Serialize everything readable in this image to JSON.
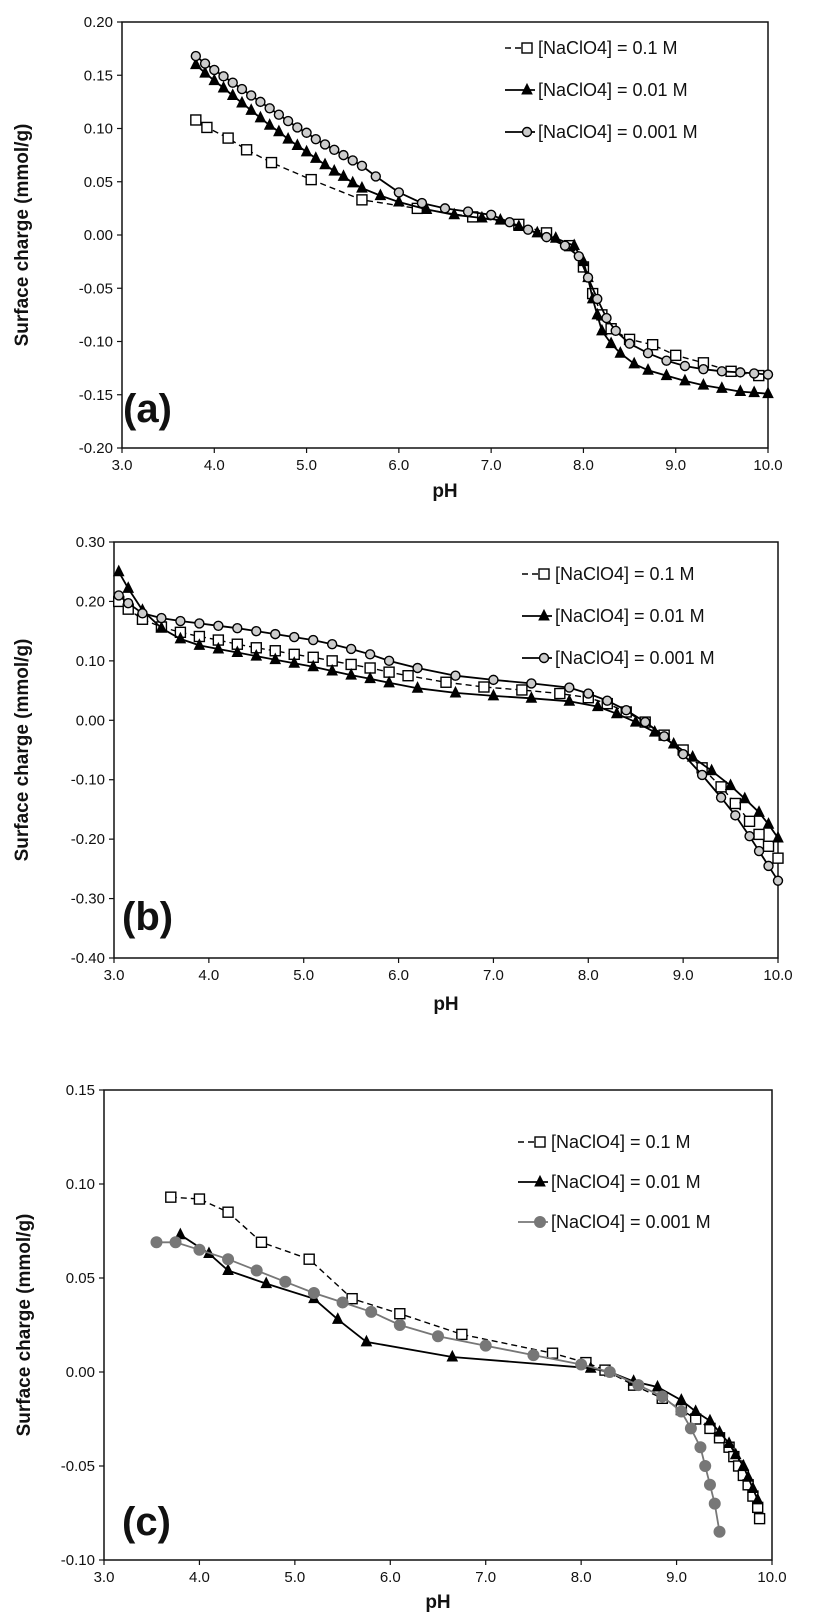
{
  "chart_data": [
    {
      "type": "scatter",
      "panel_label": "(a)",
      "xlabel": "pH",
      "ylabel": "Surface charge (mmol/g)",
      "xlim": [
        3.0,
        10.0
      ],
      "ylim": [
        -0.2,
        0.2
      ],
      "xticks": [
        "3.0",
        "4.0",
        "5.0",
        "6.0",
        "7.0",
        "8.0",
        "9.0",
        "10.0"
      ],
      "yticks": [
        "-0.20",
        "-0.15",
        "-0.10",
        "-0.05",
        "0.00",
        "0.05",
        "0.10",
        "0.15",
        "0.20"
      ],
      "legend_position": "top-right",
      "series": [
        {
          "name": "[NaClO4] = 0.1 M",
          "marker": "square-open",
          "line": "dashed",
          "color": "#000000",
          "x": [
            3.8,
            3.92,
            4.15,
            4.35,
            4.62,
            5.05,
            5.6,
            6.2,
            6.8,
            7.3,
            7.6,
            7.85,
            8.0,
            8.1,
            8.2,
            8.3,
            8.5,
            8.75,
            9.0,
            9.3,
            9.6,
            9.9
          ],
          "y": [
            0.108,
            0.101,
            0.091,
            0.08,
            0.068,
            0.052,
            0.033,
            0.025,
            0.017,
            0.01,
            0.002,
            -0.01,
            -0.03,
            -0.055,
            -0.075,
            -0.088,
            -0.098,
            -0.103,
            -0.113,
            -0.12,
            -0.128,
            -0.132
          ]
        },
        {
          "name": "[NaClO4] = 0.01 M",
          "marker": "triangle-filled",
          "line": "solid",
          "color": "#000000",
          "x": [
            3.8,
            3.9,
            4.0,
            4.1,
            4.2,
            4.3,
            4.4,
            4.5,
            4.6,
            4.7,
            4.8,
            4.9,
            5.0,
            5.1,
            5.2,
            5.3,
            5.4,
            5.5,
            5.6,
            5.8,
            6.0,
            6.3,
            6.6,
            6.9,
            7.1,
            7.3,
            7.5,
            7.7,
            7.9,
            8.0,
            8.05,
            8.1,
            8.15,
            8.2,
            8.3,
            8.4,
            8.55,
            8.7,
            8.9,
            9.1,
            9.3,
            9.5,
            9.7,
            9.85,
            10.0
          ],
          "y": [
            0.16,
            0.152,
            0.145,
            0.138,
            0.131,
            0.124,
            0.117,
            0.11,
            0.103,
            0.097,
            0.09,
            0.084,
            0.078,
            0.072,
            0.066,
            0.06,
            0.055,
            0.049,
            0.044,
            0.037,
            0.031,
            0.024,
            0.019,
            0.016,
            0.014,
            0.008,
            0.002,
            -0.003,
            -0.01,
            -0.025,
            -0.04,
            -0.06,
            -0.075,
            -0.09,
            -0.102,
            -0.111,
            -0.121,
            -0.127,
            -0.132,
            -0.137,
            -0.141,
            -0.144,
            -0.147,
            -0.148,
            -0.149
          ]
        },
        {
          "name": "[NaClO4] = 0.001 M",
          "marker": "circle-open",
          "line": "solid",
          "color": "#000000",
          "x": [
            3.8,
            3.9,
            4.0,
            4.1,
            4.2,
            4.3,
            4.4,
            4.5,
            4.6,
            4.7,
            4.8,
            4.9,
            5.0,
            5.1,
            5.2,
            5.3,
            5.4,
            5.5,
            5.6,
            5.75,
            6.0,
            6.25,
            6.5,
            6.75,
            7.0,
            7.2,
            7.4,
            7.6,
            7.8,
            7.95,
            8.05,
            8.15,
            8.25,
            8.35,
            8.5,
            8.7,
            8.9,
            9.1,
            9.3,
            9.5,
            9.7,
            9.85,
            10.0
          ],
          "y": [
            0.168,
            0.161,
            0.155,
            0.149,
            0.143,
            0.137,
            0.131,
            0.125,
            0.119,
            0.113,
            0.107,
            0.101,
            0.096,
            0.09,
            0.085,
            0.08,
            0.075,
            0.07,
            0.065,
            0.055,
            0.04,
            0.03,
            0.025,
            0.022,
            0.019,
            0.012,
            0.005,
            -0.002,
            -0.01,
            -0.02,
            -0.04,
            -0.06,
            -0.078,
            -0.09,
            -0.102,
            -0.111,
            -0.118,
            -0.123,
            -0.126,
            -0.128,
            -0.129,
            -0.13,
            -0.131
          ]
        }
      ]
    },
    {
      "type": "scatter",
      "panel_label": "(b)",
      "xlabel": "pH",
      "ylabel": "Surface charge (mmol/g)",
      "xlim": [
        3.0,
        10.0
      ],
      "ylim": [
        -0.4,
        0.3
      ],
      "xticks": [
        "3.0",
        "4.0",
        "5.0",
        "6.0",
        "7.0",
        "8.0",
        "9.0",
        "10.0"
      ],
      "yticks": [
        "-0.40",
        "-0.30",
        "-0.20",
        "-0.10",
        "0.00",
        "0.10",
        "0.20",
        "0.30"
      ],
      "legend_position": "top-right",
      "series": [
        {
          "name": "[NaClO4] = 0.1 M",
          "marker": "square-open",
          "line": "dashed",
          "color": "#000000",
          "x": [
            3.05,
            3.15,
            3.3,
            3.5,
            3.7,
            3.9,
            4.1,
            4.3,
            4.5,
            4.7,
            4.9,
            5.1,
            5.3,
            5.5,
            5.7,
            5.9,
            6.1,
            6.5,
            6.9,
            7.3,
            7.7,
            8.0,
            8.2,
            8.4,
            8.6,
            8.8,
            9.0,
            9.2,
            9.4,
            9.55,
            9.7,
            9.8,
            9.9,
            10.0
          ],
          "y": [
            0.2,
            0.187,
            0.17,
            0.157,
            0.148,
            0.141,
            0.135,
            0.128,
            0.122,
            0.117,
            0.111,
            0.106,
            0.1,
            0.094,
            0.088,
            0.081,
            0.075,
            0.064,
            0.056,
            0.051,
            0.045,
            0.038,
            0.028,
            0.014,
            -0.003,
            -0.025,
            -0.05,
            -0.08,
            -0.112,
            -0.14,
            -0.17,
            -0.192,
            -0.212,
            -0.232
          ]
        },
        {
          "name": "[NaClO4] = 0.01 M",
          "marker": "triangle-filled",
          "line": "solid",
          "color": "#000000",
          "x": [
            3.05,
            3.15,
            3.3,
            3.5,
            3.7,
            3.9,
            4.1,
            4.3,
            4.5,
            4.7,
            4.9,
            5.1,
            5.3,
            5.5,
            5.7,
            5.9,
            6.2,
            6.6,
            7.0,
            7.4,
            7.8,
            8.1,
            8.3,
            8.5,
            8.7,
            8.9,
            9.1,
            9.3,
            9.5,
            9.65,
            9.8,
            9.9,
            10.0
          ],
          "y": [
            0.25,
            0.222,
            0.185,
            0.155,
            0.137,
            0.126,
            0.12,
            0.114,
            0.108,
            0.102,
            0.096,
            0.09,
            0.083,
            0.076,
            0.07,
            0.063,
            0.054,
            0.046,
            0.041,
            0.037,
            0.032,
            0.023,
            0.011,
            -0.003,
            -0.02,
            -0.04,
            -0.062,
            -0.085,
            -0.11,
            -0.132,
            -0.155,
            -0.175,
            -0.198
          ]
        },
        {
          "name": "[NaClO4] = 0.001 M",
          "marker": "circle-open",
          "line": "solid",
          "color": "#000000",
          "x": [
            3.05,
            3.15,
            3.3,
            3.5,
            3.7,
            3.9,
            4.1,
            4.3,
            4.5,
            4.7,
            4.9,
            5.1,
            5.3,
            5.5,
            5.7,
            5.9,
            6.2,
            6.6,
            7.0,
            7.4,
            7.8,
            8.0,
            8.2,
            8.4,
            8.6,
            8.8,
            9.0,
            9.2,
            9.4,
            9.55,
            9.7,
            9.8,
            9.9,
            10.0
          ],
          "y": [
            0.21,
            0.197,
            0.18,
            0.172,
            0.167,
            0.163,
            0.159,
            0.155,
            0.15,
            0.145,
            0.14,
            0.135,
            0.128,
            0.12,
            0.111,
            0.1,
            0.088,
            0.075,
            0.068,
            0.062,
            0.055,
            0.045,
            0.033,
            0.017,
            -0.003,
            -0.027,
            -0.057,
            -0.092,
            -0.13,
            -0.16,
            -0.195,
            -0.22,
            -0.245,
            -0.27
          ]
        }
      ]
    },
    {
      "type": "scatter",
      "panel_label": "(c)",
      "xlabel": "pH",
      "ylabel": "Surface charge (mmol/g)",
      "xlim": [
        3.0,
        10.0
      ],
      "ylim": [
        -0.1,
        0.15
      ],
      "xticks": [
        "3.0",
        "4.0",
        "5.0",
        "6.0",
        "7.0",
        "8.0",
        "9.0",
        "10.0"
      ],
      "yticks": [
        "-0.10",
        "-0.05",
        "0.00",
        "0.05",
        "0.10",
        "0.15"
      ],
      "legend_position": "top-right",
      "series": [
        {
          "name": "[NaClO4] = 0.1 M",
          "marker": "square-open",
          "line": "dashed",
          "color": "#000000",
          "x": [
            3.7,
            4.0,
            4.3,
            4.65,
            5.15,
            5.6,
            6.1,
            6.75,
            7.7,
            8.05,
            8.25,
            8.55,
            8.85,
            9.05,
            9.2,
            9.35,
            9.45,
            9.55,
            9.6,
            9.65,
            9.7,
            9.75,
            9.8,
            9.85,
            9.87
          ],
          "y": [
            0.093,
            0.092,
            0.085,
            0.069,
            0.06,
            0.039,
            0.031,
            0.02,
            0.01,
            0.005,
            0.001,
            -0.007,
            -0.014,
            -0.02,
            -0.025,
            -0.03,
            -0.035,
            -0.04,
            -0.045,
            -0.05,
            -0.055,
            -0.06,
            -0.066,
            -0.072,
            -0.078
          ]
        },
        {
          "name": "[NaClO4] = 0.01 M",
          "marker": "triangle-filled",
          "line": "solid",
          "color": "#000000",
          "x": [
            3.8,
            4.1,
            4.3,
            4.7,
            5.2,
            5.45,
            5.75,
            6.65,
            8.1,
            8.3,
            8.55,
            8.8,
            9.05,
            9.2,
            9.35,
            9.45,
            9.55,
            9.62,
            9.7,
            9.75,
            9.8,
            9.85
          ],
          "y": [
            0.073,
            0.063,
            0.054,
            0.047,
            0.039,
            0.028,
            0.016,
            0.008,
            0.002,
            0.0,
            -0.005,
            -0.008,
            -0.015,
            -0.021,
            -0.026,
            -0.032,
            -0.038,
            -0.044,
            -0.05,
            -0.056,
            -0.062,
            -0.068
          ]
        },
        {
          "name": "[NaClO4] = 0.001 M",
          "marker": "circle-filled",
          "line": "solid",
          "color": "#777777",
          "x": [
            3.55,
            3.75,
            4.0,
            4.3,
            4.6,
            4.9,
            5.2,
            5.5,
            5.8,
            6.1,
            6.5,
            7.0,
            7.5,
            8.0,
            8.3,
            8.6,
            8.85,
            9.05,
            9.15,
            9.25,
            9.3,
            9.35,
            9.4,
            9.45
          ],
          "y": [
            0.069,
            0.069,
            0.065,
            0.06,
            0.054,
            0.048,
            0.042,
            0.037,
            0.032,
            0.025,
            0.019,
            0.014,
            0.009,
            0.004,
            0.0,
            -0.007,
            -0.013,
            -0.021,
            -0.03,
            -0.04,
            -0.05,
            -0.06,
            -0.07,
            -0.085
          ]
        }
      ]
    }
  ]
}
